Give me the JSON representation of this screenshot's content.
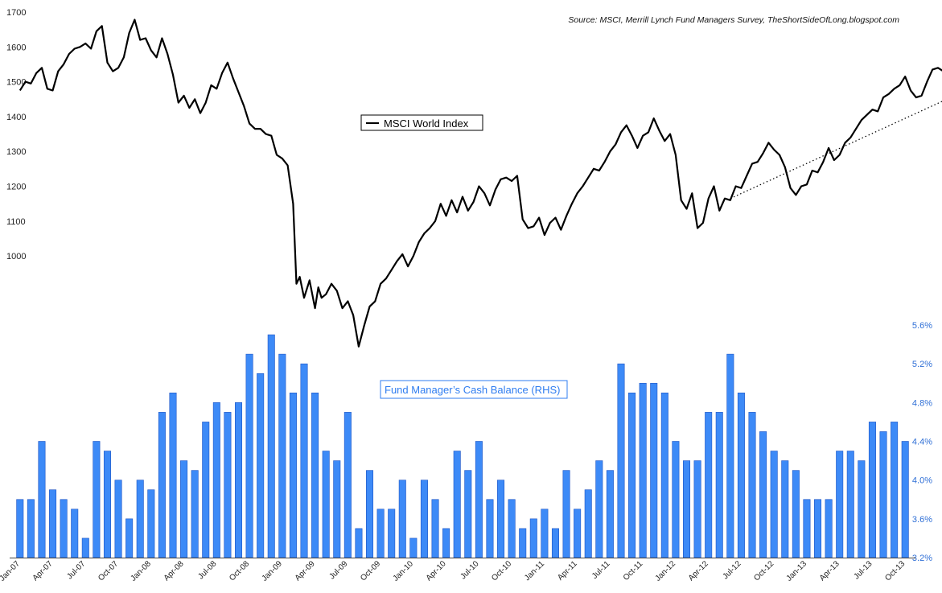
{
  "chart_data": {
    "type": "bar+line",
    "source": "Source: MSCI, Merrill Lynch Fund Managers Survey, TheShortSideOfLong.blogspot.com",
    "line_series": {
      "name": "MSCI World Index",
      "axis": "left",
      "ylim": [
        700,
        1700
      ],
      "yticks": [
        1000,
        1100,
        1200,
        1300,
        1400,
        1500,
        1600,
        1700
      ],
      "color": "#000000",
      "points": [
        [
          0,
          1475
        ],
        [
          0.5,
          1500
        ],
        [
          1,
          1495
        ],
        [
          1.5,
          1525
        ],
        [
          2,
          1540
        ],
        [
          2.5,
          1480
        ],
        [
          3,
          1475
        ],
        [
          3.5,
          1530
        ],
        [
          4,
          1550
        ],
        [
          4.5,
          1580
        ],
        [
          5,
          1595
        ],
        [
          5.5,
          1600
        ],
        [
          6,
          1610
        ],
        [
          6.5,
          1595
        ],
        [
          7,
          1645
        ],
        [
          7.5,
          1660
        ],
        [
          8,
          1555
        ],
        [
          8.5,
          1530
        ],
        [
          9,
          1540
        ],
        [
          9.5,
          1570
        ],
        [
          10,
          1640
        ],
        [
          10.5,
          1678
        ],
        [
          11,
          1620
        ],
        [
          11.5,
          1625
        ],
        [
          12,
          1590
        ],
        [
          12.5,
          1570
        ],
        [
          13,
          1625
        ],
        [
          13.5,
          1580
        ],
        [
          14,
          1520
        ],
        [
          14.5,
          1440
        ],
        [
          15,
          1460
        ],
        [
          15.5,
          1425
        ],
        [
          16,
          1450
        ],
        [
          16.5,
          1410
        ],
        [
          17,
          1440
        ],
        [
          17.5,
          1490
        ],
        [
          18,
          1480
        ],
        [
          18.5,
          1525
        ],
        [
          19,
          1555
        ],
        [
          19.5,
          1510
        ],
        [
          20,
          1470
        ],
        [
          20.5,
          1430
        ],
        [
          21,
          1380
        ],
        [
          21.5,
          1365
        ],
        [
          22,
          1365
        ],
        [
          22.5,
          1350
        ],
        [
          23,
          1345
        ],
        [
          23.5,
          1290
        ],
        [
          24,
          1280
        ],
        [
          24.5,
          1260
        ],
        [
          25,
          1150
        ],
        [
          25.3,
          920
        ],
        [
          25.6,
          940
        ],
        [
          26,
          880
        ],
        [
          26.5,
          930
        ],
        [
          27,
          850
        ],
        [
          27.3,
          910
        ],
        [
          27.6,
          880
        ],
        [
          28,
          890
        ],
        [
          28.5,
          920
        ],
        [
          29,
          900
        ],
        [
          29.5,
          850
        ],
        [
          30,
          870
        ],
        [
          30.5,
          830
        ],
        [
          31,
          740
        ],
        [
          31.5,
          800
        ],
        [
          32,
          855
        ],
        [
          32.5,
          870
        ],
        [
          33,
          920
        ],
        [
          33.5,
          935
        ],
        [
          34,
          960
        ],
        [
          34.5,
          985
        ],
        [
          35,
          1005
        ],
        [
          35.5,
          970
        ],
        [
          36,
          1000
        ],
        [
          36.5,
          1040
        ],
        [
          37,
          1065
        ],
        [
          37.5,
          1080
        ],
        [
          38,
          1100
        ],
        [
          38.5,
          1150
        ],
        [
          39,
          1115
        ],
        [
          39.5,
          1160
        ],
        [
          40,
          1125
        ],
        [
          40.5,
          1170
        ],
        [
          41,
          1130
        ],
        [
          41.5,
          1155
        ],
        [
          42,
          1200
        ],
        [
          42.5,
          1180
        ],
        [
          43,
          1145
        ],
        [
          43.5,
          1190
        ],
        [
          44,
          1220
        ],
        [
          44.5,
          1225
        ],
        [
          45,
          1215
        ],
        [
          45.5,
          1230
        ],
        [
          46,
          1105
        ],
        [
          46.5,
          1080
        ],
        [
          47,
          1085
        ],
        [
          47.5,
          1110
        ],
        [
          48,
          1060
        ],
        [
          48.5,
          1095
        ],
        [
          49,
          1110
        ],
        [
          49.5,
          1075
        ],
        [
          50,
          1115
        ],
        [
          50.5,
          1150
        ],
        [
          51,
          1180
        ],
        [
          51.5,
          1200
        ],
        [
          52,
          1225
        ],
        [
          52.5,
          1250
        ],
        [
          53,
          1245
        ],
        [
          53.5,
          1270
        ],
        [
          54,
          1300
        ],
        [
          54.5,
          1320
        ],
        [
          55,
          1355
        ],
        [
          55.5,
          1375
        ],
        [
          56,
          1345
        ],
        [
          56.5,
          1310
        ],
        [
          57,
          1345
        ],
        [
          57.5,
          1355
        ],
        [
          58,
          1395
        ],
        [
          58.5,
          1360
        ],
        [
          59,
          1330
        ],
        [
          59.5,
          1350
        ],
        [
          60,
          1290
        ],
        [
          60.5,
          1160
        ],
        [
          61,
          1135
        ],
        [
          61.5,
          1180
        ],
        [
          62,
          1080
        ],
        [
          62.5,
          1095
        ],
        [
          63,
          1165
        ],
        [
          63.5,
          1200
        ],
        [
          64,
          1130
        ],
        [
          64.5,
          1165
        ],
        [
          65,
          1160
        ],
        [
          65.5,
          1200
        ],
        [
          66,
          1195
        ],
        [
          66.5,
          1230
        ],
        [
          67,
          1265
        ],
        [
          67.5,
          1270
        ],
        [
          68,
          1295
        ],
        [
          68.5,
          1325
        ],
        [
          69,
          1305
        ],
        [
          69.5,
          1290
        ],
        [
          70,
          1255
        ],
        [
          70.5,
          1195
        ],
        [
          71,
          1175
        ],
        [
          71.5,
          1200
        ],
        [
          72,
          1205
        ],
        [
          72.5,
          1245
        ],
        [
          73,
          1240
        ],
        [
          73.5,
          1270
        ],
        [
          74,
          1310
        ],
        [
          74.5,
          1275
        ],
        [
          75,
          1290
        ],
        [
          75.5,
          1325
        ],
        [
          76,
          1340
        ],
        [
          76.5,
          1365
        ],
        [
          77,
          1390
        ],
        [
          77.5,
          1405
        ],
        [
          78,
          1420
        ],
        [
          78.5,
          1415
        ],
        [
          79,
          1455
        ],
        [
          79.5,
          1465
        ],
        [
          80,
          1480
        ],
        [
          80.5,
          1490
        ],
        [
          81,
          1515
        ],
        [
          81.5,
          1475
        ],
        [
          82,
          1455
        ],
        [
          82.5,
          1460
        ],
        [
          83,
          1500
        ],
        [
          83.5,
          1535
        ],
        [
          84,
          1540
        ],
        [
          84.5,
          1530
        ],
        [
          85,
          1500
        ],
        [
          85.5,
          1530
        ],
        [
          86,
          1560
        ],
        [
          86.5,
          1575
        ],
        [
          87,
          1570
        ],
        [
          87.5,
          1580
        ],
        [
          88,
          1615
        ]
      ],
      "trendline": {
        "style": "dotted",
        "from": [
          65,
          1165
        ],
        "to": [
          89,
          1510
        ]
      }
    },
    "bar_series": {
      "name": "Fund Manager’s Cash Balance (RHS)",
      "axis": "right",
      "ylim": [
        3.2,
        5.6
      ],
      "yticks": [
        "3.2%",
        "3.6%",
        "4.0%",
        "4.4%",
        "4.8%",
        "5.2%",
        "5.6%"
      ],
      "color": "#3d8af7",
      "values": [
        3.8,
        3.8,
        4.4,
        3.9,
        3.8,
        3.7,
        3.4,
        4.4,
        4.3,
        4.0,
        3.6,
        4.0,
        3.9,
        4.7,
        4.9,
        4.2,
        4.1,
        4.6,
        4.8,
        4.7,
        4.8,
        5.3,
        5.1,
        5.5,
        5.3,
        4.9,
        5.2,
        4.9,
        4.3,
        4.2,
        4.7,
        3.5,
        4.1,
        3.7,
        3.7,
        4.0,
        3.4,
        4.0,
        3.8,
        3.5,
        4.3,
        4.1,
        4.4,
        3.8,
        4.0,
        3.8,
        3.5,
        3.6,
        3.7,
        3.5,
        4.1,
        3.7,
        3.9,
        4.2,
        4.1,
        5.2,
        4.9,
        5.0,
        5.0,
        4.9,
        4.4,
        4.2,
        4.2,
        4.7,
        4.7,
        5.3,
        4.9,
        4.7,
        4.5,
        4.3,
        4.2,
        4.1,
        3.8,
        3.8,
        3.8,
        4.3,
        4.3,
        4.2,
        4.6,
        4.5,
        4.6,
        4.4
      ]
    },
    "x_tick_labels": [
      "Jan-07",
      "Apr-07",
      "Jul-07",
      "Oct-07",
      "Jan-08",
      "Apr-08",
      "Jul-08",
      "Oct-08",
      "Jan-09",
      "Apr-09",
      "Jul-09",
      "Oct-09",
      "Jan-10",
      "Apr-10",
      "Jul-10",
      "Oct-10",
      "Jan-11",
      "Apr-11",
      "Jul-11",
      "Oct-11",
      "Jan-12",
      "Apr-12",
      "Jul-12",
      "Oct-12",
      "Jan-13",
      "Apr-13",
      "Jul-13",
      "Oct-13"
    ],
    "legend_line_label": "MSCI World Index",
    "legend_bar_label": "Fund Manager’s Cash Balance (RHS)"
  }
}
